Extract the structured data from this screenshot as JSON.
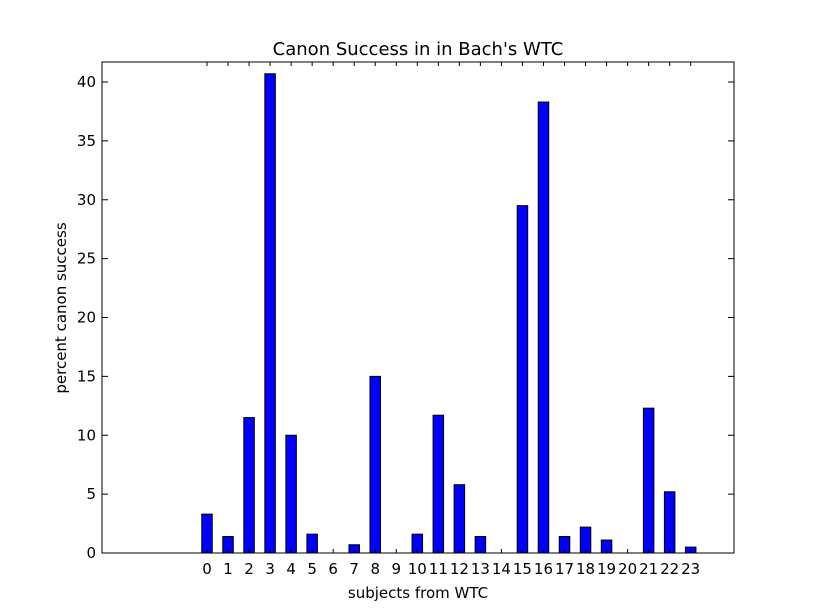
{
  "chart_data": {
    "type": "bar",
    "title": "Canon Success in in Bach's WTC",
    "xlabel": "subjects from WTC",
    "ylabel": "percent canon success",
    "categories": [
      "0",
      "1",
      "2",
      "3",
      "4",
      "5",
      "6",
      "7",
      "8",
      "9",
      "10",
      "11",
      "12",
      "13",
      "14",
      "15",
      "16",
      "17",
      "18",
      "19",
      "20",
      "21",
      "22",
      "23"
    ],
    "values": [
      3.3,
      1.4,
      11.5,
      40.7,
      10.0,
      1.6,
      0,
      0.7,
      15.0,
      0,
      1.6,
      11.7,
      5.8,
      1.4,
      0,
      29.5,
      38.3,
      1.4,
      2.2,
      1.1,
      0,
      12.3,
      5.2,
      0.5
    ],
    "yticks": [
      "0",
      "5",
      "10",
      "15",
      "20",
      "25",
      "30",
      "35",
      "40"
    ],
    "ylim": [
      0,
      41.7
    ],
    "grid": false,
    "colors": {
      "bar": "#0000ff",
      "edge": "#000000"
    }
  }
}
